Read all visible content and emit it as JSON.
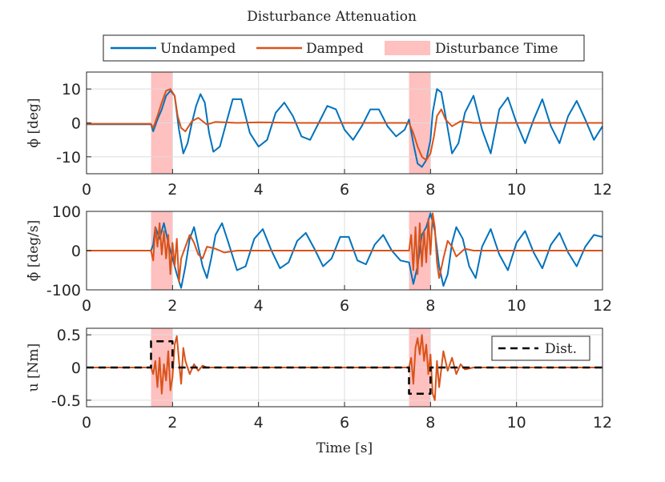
{
  "chart_data": {
    "type": "line",
    "title": "Disturbance Attenuation",
    "xlabel": "Time [s]",
    "xlim": [
      0,
      12
    ],
    "xticks": [
      0,
      2,
      4,
      6,
      8,
      10,
      12
    ],
    "x_tick_labels": [
      "0",
      "2",
      "4",
      "6",
      "8",
      "10",
      "12"
    ],
    "legend": {
      "placement": "top",
      "entries": [
        {
          "name": "Undamped",
          "color": "#0072BD",
          "style": "line"
        },
        {
          "name": "Damped",
          "color": "#D95319",
          "style": "line"
        },
        {
          "name": "Disturbance Time",
          "color": "#FFC0C0",
          "style": "patch"
        }
      ]
    },
    "disturbance_windows": [
      [
        1.5,
        2.0
      ],
      [
        7.5,
        8.0
      ]
    ],
    "subplots": [
      {
        "id": "phi",
        "ylabel": "ϕ [deg]",
        "ylim": [
          -15,
          15
        ],
        "yticks": [
          10,
          0,
          -10
        ],
        "y_tick_labels": [
          "10",
          "0",
          "-10"
        ],
        "series": [
          {
            "name": "Undamped",
            "color": "#0072BD",
            "x": [
              0,
              1.5,
              1.55,
              1.65,
              1.75,
              1.85,
              1.95,
              2.05,
              2.15,
              2.25,
              2.35,
              2.45,
              2.55,
              2.65,
              2.75,
              2.85,
              2.95,
              3.1,
              3.25,
              3.4,
              3.6,
              3.8,
              4.0,
              4.2,
              4.4,
              4.6,
              4.8,
              5.0,
              5.2,
              5.4,
              5.6,
              5.8,
              6.0,
              6.2,
              6.4,
              6.6,
              6.8,
              7.0,
              7.2,
              7.4,
              7.5,
              7.6,
              7.7,
              7.8,
              7.9,
              8.0,
              8.05,
              8.15,
              8.25,
              8.35,
              8.5,
              8.65,
              8.8,
              9.0,
              9.2,
              9.4,
              9.6,
              9.8,
              10.0,
              10.2,
              10.4,
              10.6,
              10.8,
              11.0,
              11.2,
              11.4,
              11.6,
              11.8,
              12.0
            ],
            "values": [
              -0.4,
              -0.4,
              -2.5,
              1,
              4,
              8,
              9.5,
              8,
              -2,
              -9,
              -6,
              0,
              5,
              8.5,
              6,
              -3,
              -8.5,
              -7,
              0,
              7,
              7,
              -3,
              -7,
              -5,
              3,
              6,
              2,
              -4,
              -5,
              0,
              5,
              4,
              -2,
              -5,
              -1,
              4,
              4,
              -1,
              -4,
              -2,
              1,
              -6,
              -12,
              -13,
              -11,
              -5,
              3,
              10,
              9,
              2,
              -9,
              -6,
              3,
              8,
              -2,
              -9,
              4,
              7.5,
              0,
              -6,
              1,
              7,
              -1,
              -6,
              2,
              6.5,
              1,
              -5,
              -1
            ]
          },
          {
            "name": "Damped",
            "color": "#D95319",
            "x": [
              0,
              1.5,
              1.55,
              1.65,
              1.75,
              1.85,
              1.95,
              2.05,
              2.12,
              2.2,
              2.3,
              2.45,
              2.6,
              2.8,
              3.0,
              3.5,
              4.0,
              5.0,
              6.0,
              7.0,
              7.5,
              7.6,
              7.7,
              7.8,
              7.9,
              8.0,
              8.08,
              8.15,
              8.25,
              8.35,
              8.5,
              8.7,
              9.0,
              9.5,
              10.0,
              12.0
            ],
            "values": [
              -0.3,
              -0.3,
              -1.5,
              2,
              6,
              9.5,
              10,
              8,
              2,
              -1.5,
              -2.5,
              0.5,
              1.5,
              -0.5,
              0.3,
              0,
              0.2,
              0,
              0,
              0,
              0,
              -3,
              -7,
              -10,
              -11,
              -9,
              -4,
              2,
              4,
              1,
              -1,
              0.5,
              0,
              0,
              0,
              0
            ]
          }
        ]
      },
      {
        "id": "phidot",
        "ylabel": "ϕ̇ [deg/s]",
        "ylim": [
          -100,
          100
        ],
        "yticks": [
          100,
          0,
          -100
        ],
        "y_tick_labels": [
          "100",
          "0",
          "-100"
        ],
        "series": [
          {
            "name": "Undamped",
            "color": "#0072BD",
            "x": [
              0,
              1.5,
              1.55,
              1.6,
              1.7,
              1.8,
              1.9,
              2.0,
              2.1,
              2.2,
              2.3,
              2.4,
              2.5,
              2.6,
              2.7,
              2.8,
              2.9,
              3.0,
              3.15,
              3.3,
              3.5,
              3.7,
              3.9,
              4.1,
              4.3,
              4.5,
              4.7,
              4.9,
              5.1,
              5.3,
              5.5,
              5.7,
              5.9,
              6.1,
              6.3,
              6.5,
              6.7,
              6.9,
              7.1,
              7.3,
              7.5,
              7.6,
              7.7,
              7.8,
              7.9,
              8.0,
              8.1,
              8.2,
              8.3,
              8.4,
              8.5,
              8.6,
              8.75,
              8.9,
              9.05,
              9.2,
              9.4,
              9.6,
              9.8,
              10.0,
              10.2,
              10.4,
              10.6,
              10.8,
              11.0,
              11.2,
              11.4,
              11.6,
              11.8,
              12.0
            ],
            "values": [
              0,
              0,
              15,
              60,
              30,
              70,
              20,
              -20,
              -60,
              -95,
              -40,
              30,
              60,
              10,
              -40,
              -70,
              -20,
              40,
              70,
              20,
              -50,
              -40,
              30,
              55,
              0,
              -45,
              -30,
              25,
              45,
              5,
              -40,
              -20,
              35,
              35,
              -25,
              -35,
              15,
              40,
              0,
              -25,
              -30,
              -85,
              -40,
              40,
              60,
              95,
              50,
              -40,
              -90,
              -60,
              20,
              60,
              30,
              -40,
              -70,
              10,
              55,
              -10,
              -50,
              20,
              50,
              -5,
              -45,
              15,
              45,
              -5,
              -40,
              10,
              40,
              35
            ]
          },
          {
            "name": "Damped",
            "color": "#D95319",
            "x": [
              0,
              1.5,
              1.55,
              1.6,
              1.65,
              1.7,
              1.75,
              1.8,
              1.85,
              1.9,
              1.95,
              2.0,
              2.05,
              2.1,
              2.15,
              2.2,
              2.3,
              2.4,
              2.5,
              2.6,
              2.7,
              2.8,
              3.0,
              3.2,
              3.5,
              4.0,
              7.5,
              7.55,
              7.6,
              7.65,
              7.7,
              7.75,
              7.8,
              7.85,
              7.9,
              7.95,
              8.0,
              8.05,
              8.1,
              8.15,
              8.2,
              8.3,
              8.4,
              8.5,
              8.6,
              8.8,
              9.0,
              9.3,
              12.0
            ],
            "values": [
              0,
              0,
              -25,
              60,
              10,
              70,
              -10,
              50,
              -20,
              40,
              -60,
              20,
              -40,
              30,
              -80,
              -20,
              10,
              40,
              20,
              -10,
              -20,
              10,
              5,
              -5,
              0,
              0,
              0,
              40,
              -50,
              60,
              -60,
              70,
              -40,
              50,
              -30,
              80,
              -10,
              95,
              60,
              -30,
              -70,
              -20,
              25,
              10,
              -15,
              5,
              0,
              0,
              0
            ]
          }
        ]
      },
      {
        "id": "u",
        "ylabel": "u [Nm]",
        "ylim": [
          -0.6,
          0.6
        ],
        "yticks": [
          0.5,
          0,
          -0.5
        ],
        "y_tick_labels": [
          "0.5",
          "0",
          "-0.5"
        ],
        "legend": {
          "placement": "top-right",
          "entries": [
            {
              "name": "Dist.",
              "color": "#000000",
              "style": "dashed"
            }
          ]
        },
        "series": [
          {
            "name": "Damped",
            "color": "#D95319",
            "x": [
              0,
              1.5,
              1.55,
              1.6,
              1.65,
              1.7,
              1.75,
              1.8,
              1.85,
              1.9,
              1.95,
              2.0,
              2.05,
              2.1,
              2.15,
              2.2,
              2.25,
              2.3,
              2.4,
              2.5,
              2.6,
              2.7,
              2.8,
              3.0,
              3.5,
              7.5,
              7.55,
              7.6,
              7.65,
              7.7,
              7.75,
              7.8,
              7.85,
              7.9,
              7.95,
              8.0,
              8.05,
              8.1,
              8.15,
              8.2,
              8.3,
              8.4,
              8.5,
              8.6,
              8.7,
              8.8,
              9.0,
              9.3,
              12.0
            ],
            "values": [
              0,
              0,
              -0.1,
              0.1,
              -0.3,
              0.15,
              -0.4,
              0.05,
              -0.2,
              0.25,
              -0.35,
              -0.15,
              0.35,
              0.48,
              0.1,
              -0.25,
              0.3,
              0.1,
              -0.1,
              0.05,
              -0.05,
              0.03,
              0,
              0,
              0,
              0,
              0.15,
              -0.25,
              0.3,
              0.45,
              0.2,
              0.5,
              0.1,
              0.35,
              -0.1,
              0.2,
              -0.4,
              -0.5,
              0.1,
              -0.3,
              0.25,
              -0.05,
              0.15,
              -0.1,
              0.05,
              -0.03,
              0,
              0,
              0
            ]
          },
          {
            "name": "Dist.",
            "color": "#000000",
            "style": "dashed",
            "x": [
              0,
              1.5,
              1.5,
              2.0,
              2.0,
              7.5,
              7.5,
              8.0,
              8.0,
              12.0
            ],
            "values": [
              0,
              0,
              0.4,
              0.4,
              0,
              0,
              -0.4,
              -0.4,
              0,
              0
            ]
          }
        ]
      }
    ]
  }
}
